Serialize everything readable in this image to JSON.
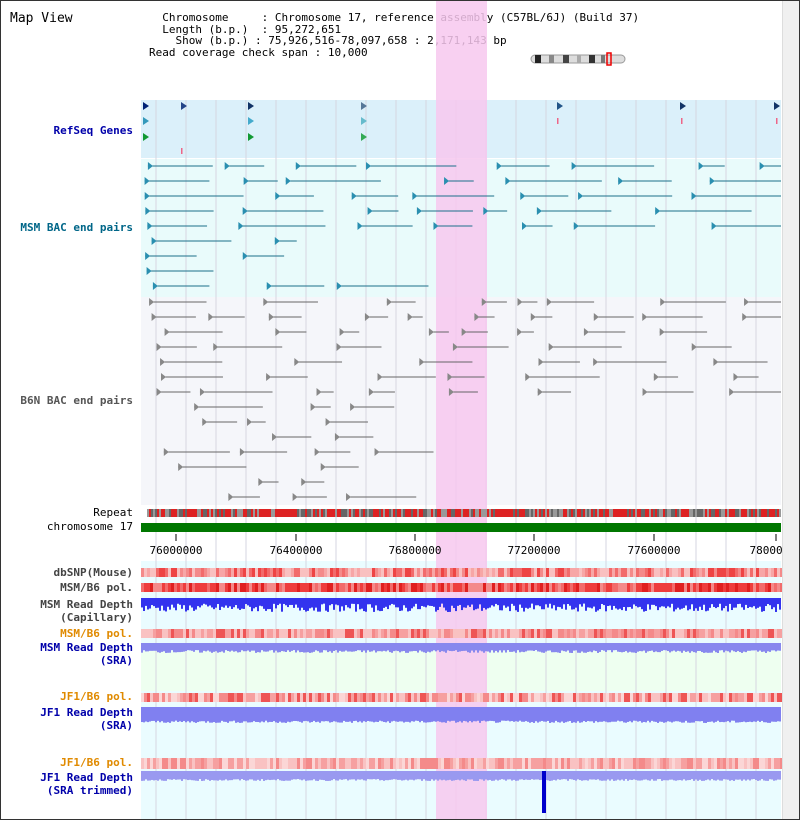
{
  "app_title": "Map View",
  "header": {
    "chromosome_label": "Chromosome",
    "chromosome_value": "Chromosome 17, reference assembly (C57BL/6J) (Build 37)",
    "length_label": "Length (b.p.)",
    "length_value": "95,272,651",
    "show_label": "Show (b.p.)",
    "show_value": "75,926,516-78,097,658 : 2,171,143 bp",
    "coverage_label": "Read coverage check span",
    "coverage_value": "10,000"
  },
  "tracks": {
    "refseq": "RefSeq Genes",
    "msm_bac": "MSM BAC end pairs",
    "b6n_bac": "B6N BAC end pairs",
    "repeat": "Repeat",
    "chromosome": "chromosome 17",
    "dbsnp": "dbSNP(Mouse)",
    "msm_b6_pol_1": "MSM/B6 pol.",
    "msm_read_depth_cap_1": "MSM Read Depth",
    "msm_read_depth_cap_2": "(Capillary)",
    "msm_b6_pol_2": "MSM/B6 pol.",
    "msm_read_depth_sra_1": "MSM Read Depth",
    "msm_read_depth_sra_2": "(SRA)",
    "jf1_b6_pol_1": "JF1/B6 pol.",
    "jf1_read_depth_sra_1": "JF1 Read Depth",
    "jf1_read_depth_sra_2": "(SRA)",
    "jf1_b6_pol_2": "JF1/B6 pol.",
    "jf1_read_depth_trim_1": "JF1 Read Depth",
    "jf1_read_depth_trim_2": "(SRA trimmed)"
  },
  "axis_ticks": [
    "76000000",
    "76400000",
    "76800000",
    "77200000",
    "77600000",
    "78000000"
  ],
  "colors": {
    "refseq": "#0000aa",
    "msm_bac": "#006688",
    "b6n_bac": "#555555",
    "orange": "#e08a00",
    "highlight": "#f7c8ee",
    "chromosome": "#007700"
  }
}
